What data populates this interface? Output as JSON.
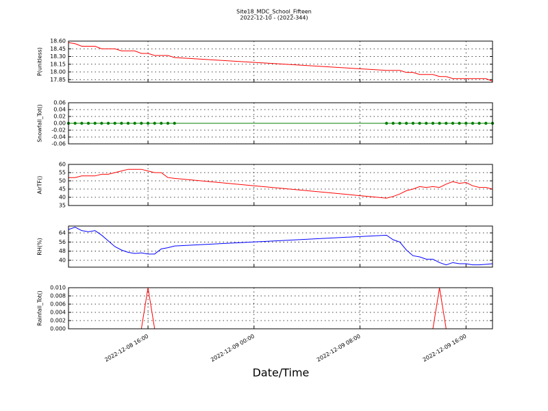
{
  "chart_data": {
    "type": "line",
    "title": "Site18_MDC_School_Fifteen",
    "subtitle": "2022-12-10 - (2022-344)",
    "xlabel": "Date/Time",
    "xlim": [
      "2022-12-08 10:00",
      "2022-12-09 18:00"
    ],
    "xticks": [
      "2022-12-08 16:00",
      "2022-12-09 00:00",
      "2022-12-09 08:00",
      "2022-12-09 16:00"
    ],
    "grid": true,
    "x": [
      "2022-12-08 10:00",
      "2022-12-08 10:30",
      "2022-12-08 11:00",
      "2022-12-08 11:30",
      "2022-12-08 12:00",
      "2022-12-08 12:30",
      "2022-12-08 13:00",
      "2022-12-08 13:30",
      "2022-12-08 14:00",
      "2022-12-08 14:30",
      "2022-12-08 15:00",
      "2022-12-08 15:30",
      "2022-12-08 16:00",
      "2022-12-08 16:30",
      "2022-12-08 17:00",
      "2022-12-08 17:30",
      "2022-12-08 18:00",
      "2022-12-09 10:00",
      "2022-12-09 10:30",
      "2022-12-09 11:00",
      "2022-12-09 11:30",
      "2022-12-09 12:00",
      "2022-12-09 12:30",
      "2022-12-09 13:00",
      "2022-12-09 13:30",
      "2022-12-09 14:00",
      "2022-12-09 14:30",
      "2022-12-09 15:00",
      "2022-12-09 15:30",
      "2022-12-09 16:00",
      "2022-12-09 16:30",
      "2022-12-09 17:00",
      "2022-12-09 17:30",
      "2022-12-09 18:00"
    ],
    "panels": [
      {
        "ylabel": "P(unitless)",
        "color": "#ff0000",
        "marker": false,
        "ylim": [
          17.8,
          18.6
        ],
        "yticks": [
          {
            "value": 17.85,
            "label": "17.85"
          },
          {
            "value": 18,
            "label": "18.00"
          },
          18.15,
          {
            "value": 18.3,
            "label": "18.30"
          },
          18.45,
          {
            "value": 18.6,
            "label": "18.60"
          }
        ],
        "values": [
          18.57,
          18.55,
          18.5,
          18.5,
          18.5,
          18.45,
          18.45,
          18.45,
          18.41,
          18.41,
          18.41,
          18.36,
          18.36,
          18.32,
          18.32,
          18.32,
          18.28,
          18.03,
          18.03,
          18.03,
          17.99,
          17.99,
          17.95,
          17.95,
          17.95,
          17.91,
          17.91,
          17.87,
          17.87,
          17.87,
          17.87,
          17.87,
          17.87,
          17.82
        ]
      },
      {
        "ylabel": "Snowfall_Tot()",
        "color": "#008000",
        "marker": true,
        "ylim": [
          -0.06,
          0.06
        ],
        "yticks": [
          -0.06,
          -0.04,
          -0.02,
          {
            "value": 0,
            "label": "0.00"
          },
          0.02,
          0.04,
          0.06
        ],
        "values": [
          0,
          0,
          0,
          0,
          0,
          0,
          0,
          0,
          0,
          0,
          0,
          0,
          0,
          0,
          0,
          0,
          0,
          0,
          0,
          0,
          0,
          0,
          0,
          0,
          0,
          0,
          0,
          0,
          0,
          0,
          0,
          0,
          0,
          0
        ]
      },
      {
        "ylabel": "AirTF()",
        "color": "#ff0000",
        "marker": false,
        "ylim": [
          35,
          60
        ],
        "yticks": [
          35,
          40,
          45,
          50,
          55,
          60
        ],
        "values": [
          52,
          52,
          53,
          53,
          53,
          54,
          54,
          55,
          56,
          57,
          57,
          57,
          56,
          55,
          55,
          52,
          51.5,
          39.5,
          40.5,
          42,
          44,
          45,
          46.5,
          46,
          46.5,
          46,
          48,
          49.5,
          48.5,
          49,
          47,
          46,
          46,
          45
        ]
      },
      {
        "ylabel": "RH(%)",
        "color": "#0000ff",
        "marker": false,
        "ylim": [
          34,
          70
        ],
        "yticks": [
          40,
          48,
          56,
          64
        ],
        "values": [
          67,
          69,
          66,
          65,
          66,
          62,
          57,
          52,
          49,
          47,
          46,
          46.5,
          45.5,
          45.5,
          50,
          51,
          52.5,
          62,
          58,
          56,
          49,
          44,
          43,
          41,
          41,
          38,
          36,
          38,
          37,
          37,
          36,
          36,
          36.5,
          37
        ]
      },
      {
        "ylabel": "Rainfall_Tot()",
        "color": "#ff0000",
        "marker": false,
        "ylim": [
          0,
          0.01
        ],
        "yticks": [
          {
            "value": 0,
            "label": "0.000"
          },
          0.002,
          0.004,
          0.006,
          0.008,
          {
            "value": 0.01,
            "label": "0.010"
          }
        ],
        "values": [
          0,
          0,
          0,
          0,
          0,
          0,
          0,
          0,
          0,
          0,
          0,
          0,
          0.01,
          0,
          0,
          0,
          0,
          0,
          0,
          0,
          0,
          0,
          0,
          0,
          0,
          0.01,
          0,
          0,
          0,
          0,
          0,
          0,
          0,
          0
        ]
      }
    ]
  }
}
